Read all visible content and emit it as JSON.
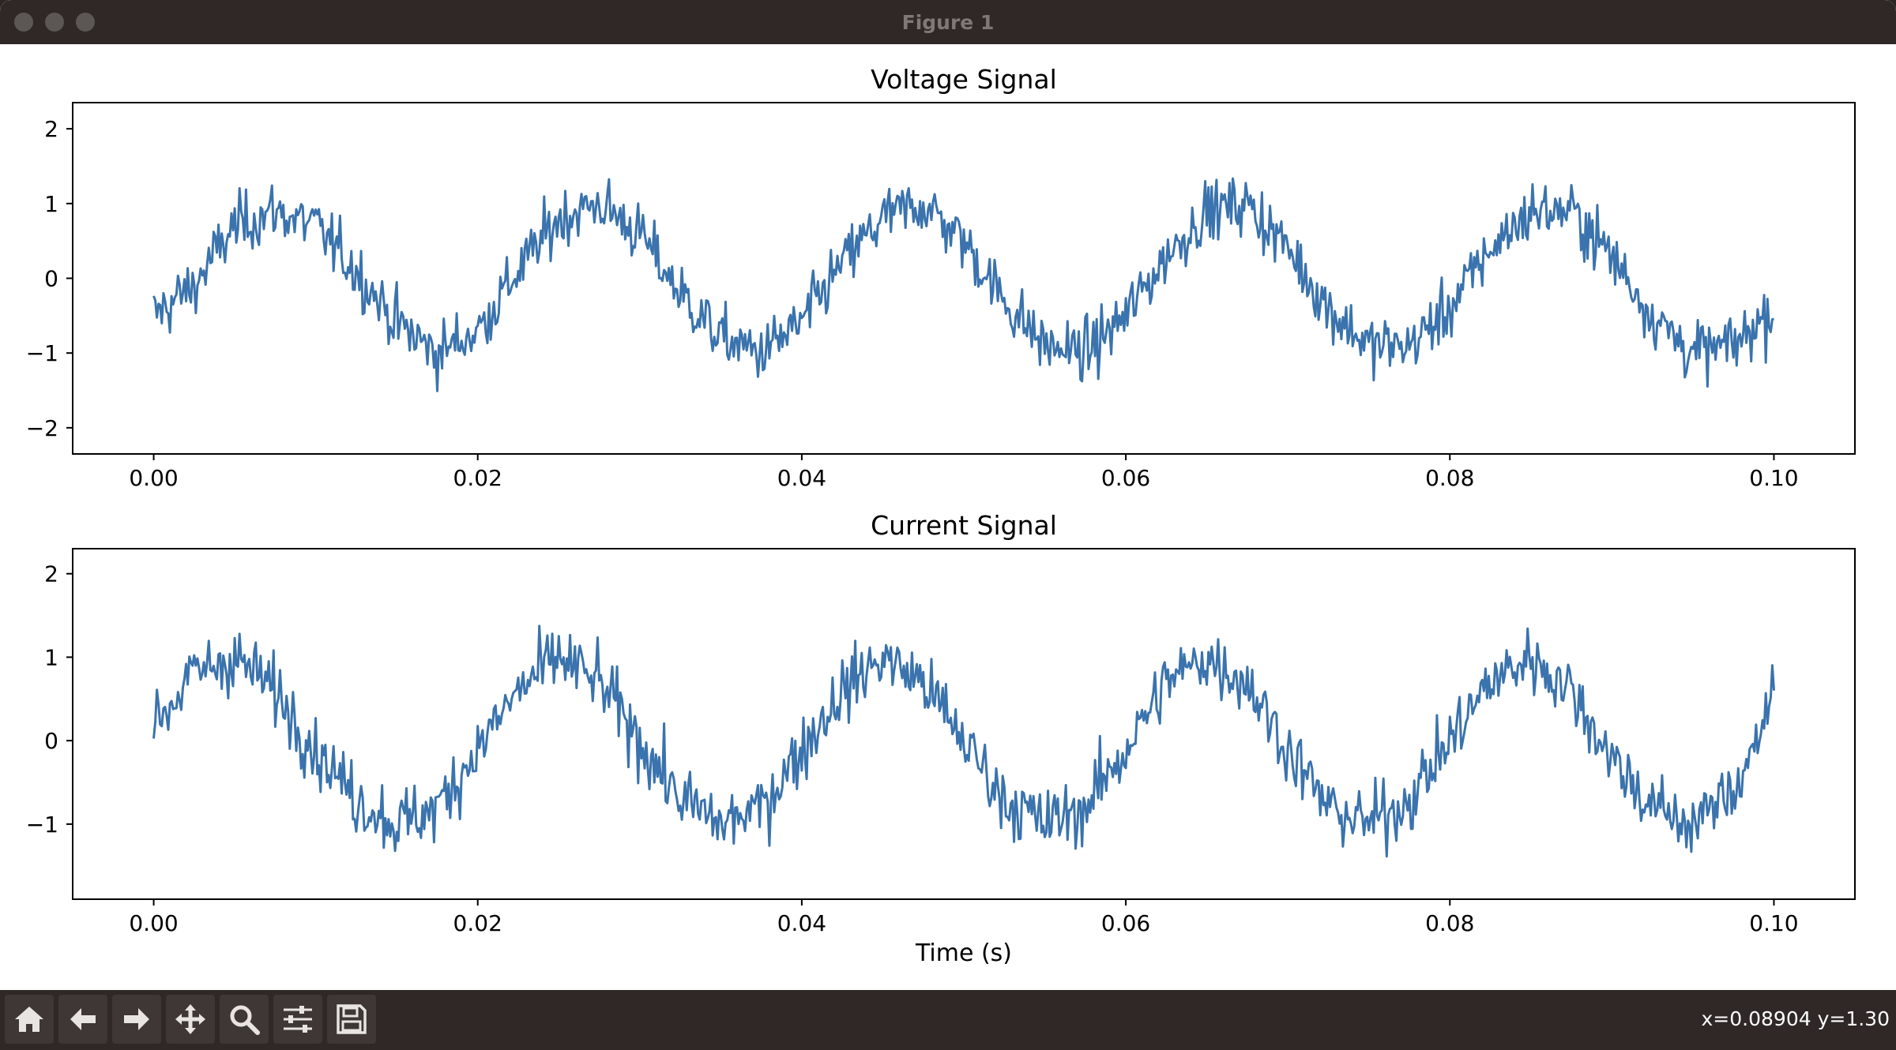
{
  "window": {
    "title": "Figure 1"
  },
  "toolbar": {
    "buttons": [
      {
        "name": "home-button",
        "icon": "home-icon"
      },
      {
        "name": "back-button",
        "icon": "arrow-left-icon"
      },
      {
        "name": "forward-button",
        "icon": "arrow-right-icon"
      },
      {
        "name": "pan-button",
        "icon": "move-icon"
      },
      {
        "name": "zoom-button",
        "icon": "magnifier-icon"
      },
      {
        "name": "configure-subplots-button",
        "icon": "sliders-icon"
      },
      {
        "name": "save-button",
        "icon": "floppy-disk-icon"
      }
    ],
    "coords_text": "x=0.08904 y=1.30"
  },
  "chart_data": [
    {
      "type": "line",
      "title": "Voltage Signal",
      "xlabel": "",
      "ylabel": "",
      "xlim": [
        -0.005,
        0.105
      ],
      "ylim": [
        -2.35,
        2.35
      ],
      "xticks": [
        "0.00",
        "0.02",
        "0.04",
        "0.06",
        "0.08",
        "0.10"
      ],
      "xtick_values": [
        0.0,
        0.02,
        0.04,
        0.06,
        0.08,
        0.1
      ],
      "yticks": [
        "2",
        "1",
        "0",
        "−1",
        "−2"
      ],
      "ytick_values": [
        2,
        1,
        0,
        -1,
        -2
      ],
      "color": "#3a73ad",
      "grid": false,
      "series": [
        {
          "x": [
            0.0,
            0.0025,
            0.005,
            0.0075,
            0.01,
            0.0125,
            0.015,
            0.0175,
            0.02,
            0.0225,
            0.025,
            0.0275,
            0.03,
            0.0325,
            0.035,
            0.0375,
            0.04,
            0.0425,
            0.045,
            0.0475,
            0.05,
            0.0525,
            0.055,
            0.0575,
            0.06,
            0.0625,
            0.065,
            0.0675,
            0.07,
            0.0725,
            0.075,
            0.0775,
            0.08,
            0.0825,
            0.085,
            0.0875,
            0.09,
            0.0925,
            0.095,
            0.0975,
            0.1
          ],
          "y": [
            -0.5,
            -0.1,
            0.7,
            0.9,
            0.7,
            0.1,
            -0.6,
            -1.0,
            -0.7,
            0.1,
            0.8,
            1.0,
            0.6,
            -0.2,
            -0.8,
            -1.0,
            -0.6,
            0.2,
            0.8,
            1.0,
            0.5,
            -0.3,
            -0.9,
            -1.0,
            -0.5,
            0.3,
            0.9,
            1.0,
            0.4,
            -0.4,
            -0.9,
            -0.9,
            -0.4,
            0.4,
            0.9,
            0.9,
            0.3,
            -0.5,
            -1.0,
            -0.9,
            -0.4
          ]
        }
      ]
    },
    {
      "type": "line",
      "title": "Current Signal",
      "xlabel": "Time (s)",
      "ylabel": "",
      "xlim": [
        -0.005,
        0.105
      ],
      "ylim": [
        -1.9,
        2.3
      ],
      "xticks": [
        "0.00",
        "0.02",
        "0.04",
        "0.06",
        "0.08",
        "0.10"
      ],
      "xtick_values": [
        0.0,
        0.02,
        0.04,
        0.06,
        0.08,
        0.1
      ],
      "yticks": [
        "2",
        "1",
        "0",
        "−1"
      ],
      "ytick_values": [
        2,
        1,
        0,
        -1
      ],
      "color": "#3a73ad",
      "grid": false,
      "series": [
        {
          "x": [
            0.0,
            0.0025,
            0.005,
            0.0075,
            0.01,
            0.0125,
            0.015,
            0.0175,
            0.02,
            0.0225,
            0.025,
            0.0275,
            0.03,
            0.0325,
            0.035,
            0.0375,
            0.04,
            0.0425,
            0.045,
            0.0475,
            0.05,
            0.0525,
            0.055,
            0.0575,
            0.06,
            0.0625,
            0.065,
            0.0675,
            0.07,
            0.0725,
            0.075,
            0.0775,
            0.08,
            0.0825,
            0.085,
            0.0875,
            0.09,
            0.0925,
            0.095,
            0.0975,
            0.1
          ],
          "y": [
            0.2,
            0.8,
            1.0,
            0.6,
            -0.1,
            -0.7,
            -1.0,
            -0.8,
            -0.1,
            0.6,
            1.0,
            0.7,
            0.0,
            -0.7,
            -1.0,
            -0.8,
            -0.1,
            0.6,
            1.0,
            0.7,
            0.0,
            -0.7,
            -1.0,
            -0.8,
            -0.1,
            0.7,
            1.0,
            0.7,
            -0.1,
            -0.8,
            -1.0,
            -0.7,
            0.0,
            0.7,
            1.0,
            0.6,
            -0.2,
            -0.8,
            -1.0,
            -0.6,
            0.5
          ]
        }
      ]
    }
  ]
}
